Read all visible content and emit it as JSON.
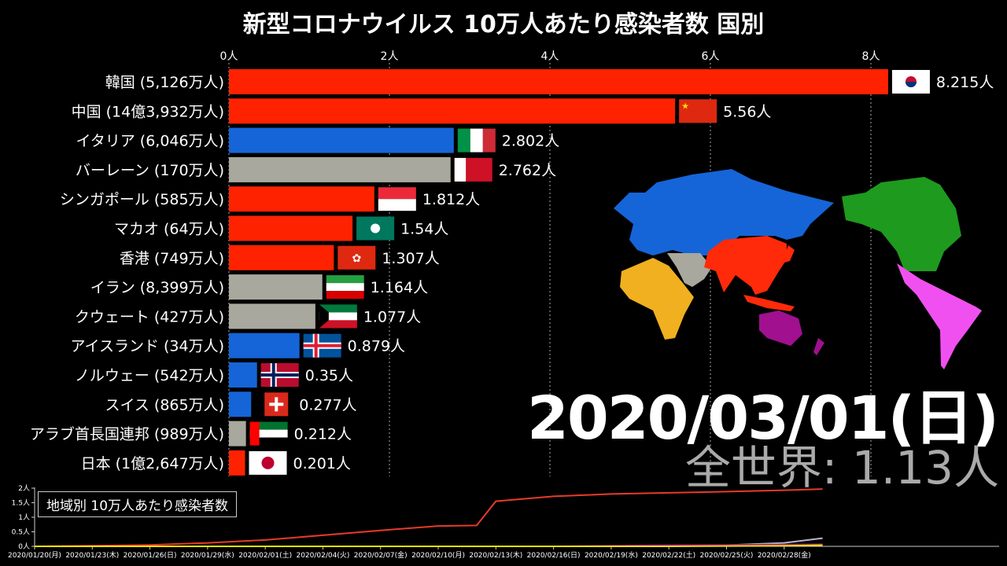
{
  "title": "新型コロナウイルス 10万人あたり感染者数 国別",
  "date": "2020/03/01(日)",
  "world_total": "全世界: 1.13人",
  "colors": {
    "asia": "#ff2200",
    "europe": "#1565d8",
    "middle_east": "#a8a89e",
    "africa": "#f0b020",
    "oceania": "#a0108f",
    "north_america": "#1e9a1e",
    "south_america": "#f050f0"
  },
  "chart_data": [
    {
      "type": "bar",
      "title": "新型コロナウイルス 10万人あたり感染者数 国別",
      "xlim": [
        0,
        8.4
      ],
      "x_ticks": [
        "0人",
        "2人",
        "4人",
        "6人",
        "8人"
      ],
      "x_tick_values": [
        0,
        2,
        4,
        6,
        8
      ],
      "grid": true,
      "bars": [
        {
          "label": "韓国 (5,126万人)",
          "value": 8.215,
          "value_label": "8.215人",
          "region": "asia",
          "flag": "kr"
        },
        {
          "label": "中国 (14億3,932万人)",
          "value": 5.56,
          "value_label": "5.56人",
          "region": "asia",
          "flag": "cn"
        },
        {
          "label": "イタリア (6,046万人)",
          "value": 2.802,
          "value_label": "2.802人",
          "region": "europe",
          "flag": "it"
        },
        {
          "label": "バーレーン (170万人)",
          "value": 2.762,
          "value_label": "2.762人",
          "region": "middle_east",
          "flag": "bh"
        },
        {
          "label": "シンガポール (585万人)",
          "value": 1.812,
          "value_label": "1.812人",
          "region": "asia",
          "flag": "sg"
        },
        {
          "label": "マカオ (64万人)",
          "value": 1.54,
          "value_label": "1.54人",
          "region": "asia",
          "flag": "mo"
        },
        {
          "label": "香港 (749万人)",
          "value": 1.307,
          "value_label": "1.307人",
          "region": "asia",
          "flag": "hk"
        },
        {
          "label": "イラン (8,399万人)",
          "value": 1.164,
          "value_label": "1.164人",
          "region": "middle_east",
          "flag": "ir"
        },
        {
          "label": "クウェート (427万人)",
          "value": 1.077,
          "value_label": "1.077人",
          "region": "middle_east",
          "flag": "kw"
        },
        {
          "label": "アイスランド (34万人)",
          "value": 0.879,
          "value_label": "0.879人",
          "region": "europe",
          "flag": "is"
        },
        {
          "label": "ノルウェー (542万人)",
          "value": 0.35,
          "value_label": "0.35人",
          "region": "europe",
          "flag": "no"
        },
        {
          "label": "スイス (865万人)",
          "value": 0.277,
          "value_label": "0.277人",
          "region": "europe",
          "flag": "ch"
        },
        {
          "label": "アラブ首長国連邦 (989万人)",
          "value": 0.212,
          "value_label": "0.212人",
          "region": "middle_east",
          "flag": "ae"
        },
        {
          "label": "日本 (1億2,647万人)",
          "value": 0.201,
          "value_label": "0.201人",
          "region": "asia",
          "flag": "jp"
        }
      ]
    },
    {
      "type": "line",
      "title": "地域別 10万人あたり感染者数",
      "ylim": [
        0,
        2
      ],
      "y_ticks": [
        "0人",
        "0.5人",
        "1人",
        "1.5人",
        "2人"
      ],
      "y_tick_values": [
        0,
        0.5,
        1,
        1.5,
        2
      ],
      "x_ticks": [
        "2020/01/20(月)",
        "2020/01/23(木)",
        "2020/01/26(日)",
        "2020/01/29(水)",
        "2020/02/01(土)",
        "2020/02/04(火)",
        "2020/02/07(金)",
        "2020/02/10(月)",
        "2020/02/13(木)",
        "2020/02/16(日)",
        "2020/02/19(水)",
        "2020/02/22(土)",
        "2020/02/25(火)",
        "2020/02/28(金)"
      ],
      "x": [
        "2020/01/20",
        "2020/01/23",
        "2020/01/26",
        "2020/01/29",
        "2020/02/01",
        "2020/02/04",
        "2020/02/07",
        "2020/02/10",
        "2020/02/12",
        "2020/02/13",
        "2020/02/16",
        "2020/02/19",
        "2020/02/22",
        "2020/02/25",
        "2020/02/28",
        "2020/03/01"
      ],
      "series": [
        {
          "region": "asia",
          "color": "#e83a2a",
          "values": [
            0,
            0.02,
            0.05,
            0.12,
            0.22,
            0.38,
            0.55,
            0.7,
            0.72,
            1.55,
            1.72,
            1.8,
            1.84,
            1.88,
            1.93,
            1.97
          ]
        },
        {
          "region": "middle_east",
          "color": "#b8b8c8",
          "values": [
            0,
            0,
            0,
            0,
            0,
            0,
            0,
            0,
            0,
            0,
            0,
            0,
            0.01,
            0.04,
            0.12,
            0.28
          ]
        },
        {
          "region": "oceania",
          "color": "#a0108f",
          "values": [
            0,
            0,
            0,
            0,
            0,
            0,
            0,
            0,
            0,
            0,
            0,
            0.02,
            0.04,
            0.05,
            0.06,
            0.07
          ]
        },
        {
          "region": "europe",
          "color": "#e8e000",
          "values": [
            0,
            0,
            0,
            0,
            0,
            0,
            0,
            0,
            0,
            0,
            0,
            0,
            0,
            0.01,
            0.02,
            0.04
          ]
        }
      ]
    }
  ]
}
